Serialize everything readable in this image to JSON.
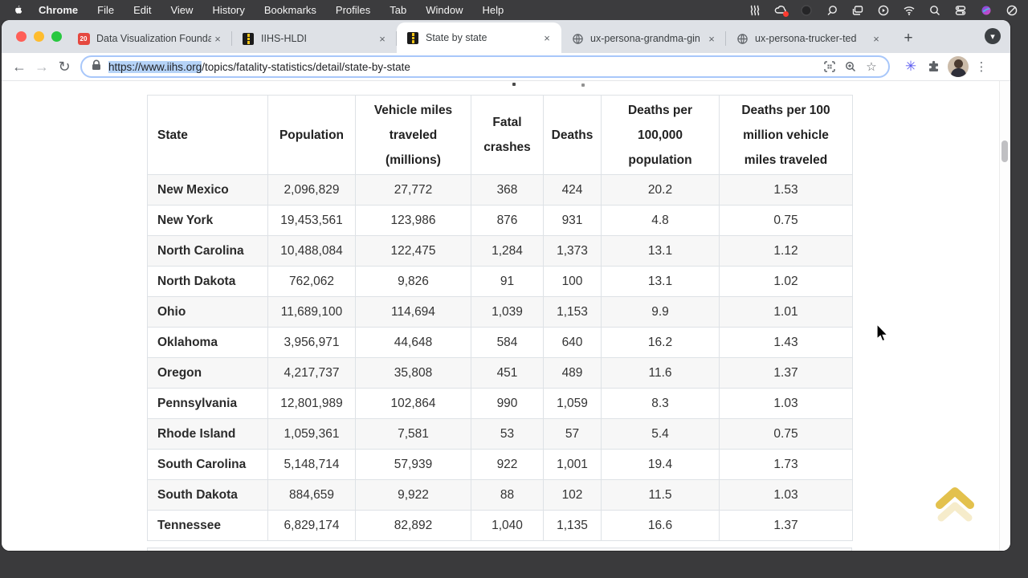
{
  "menubar": {
    "app_name": "Chrome",
    "menus": [
      "File",
      "Edit",
      "View",
      "History",
      "Bookmarks",
      "Profiles",
      "Tab",
      "Window",
      "Help"
    ]
  },
  "browser": {
    "tabs": [
      {
        "title": "Data Visualization Founda",
        "favicon": "calendar",
        "favicon_badge": "20"
      },
      {
        "title": "IIHS-HLDI",
        "favicon": "road"
      },
      {
        "title": "State by state",
        "favicon": "road",
        "active": true
      },
      {
        "title": "ux-persona-grandma-gin",
        "favicon": "globe"
      },
      {
        "title": "ux-persona-trucker-ted",
        "favicon": "globe"
      }
    ],
    "url": {
      "selected_part": "https://www.iihs.org",
      "rest_part": "/topics/fatality-statistics/detail/state-by-state"
    }
  },
  "icons": {
    "close": "×",
    "plus": "+",
    "back": "←",
    "forward": "→",
    "reload": "↻",
    "star": "☆",
    "kebab": "⋮",
    "asterisk": "✳",
    "chevron_down": "▾"
  },
  "table": {
    "headers": [
      "State",
      "Population",
      "Vehicle miles traveled (millions)",
      "Fatal crashes",
      "Deaths",
      "Deaths per 100,000 population",
      "Deaths per 100 million vehicle miles traveled"
    ],
    "rows": [
      [
        "New Mexico",
        "2,096,829",
        "27,772",
        "368",
        "424",
        "20.2",
        "1.53"
      ],
      [
        "New York",
        "19,453,561",
        "123,986",
        "876",
        "931",
        "4.8",
        "0.75"
      ],
      [
        "North Carolina",
        "10,488,084",
        "122,475",
        "1,284",
        "1,373",
        "13.1",
        "1.12"
      ],
      [
        "North Dakota",
        "762,062",
        "9,826",
        "91",
        "100",
        "13.1",
        "1.02"
      ],
      [
        "Ohio",
        "11,689,100",
        "114,694",
        "1,039",
        "1,153",
        "9.9",
        "1.01"
      ],
      [
        "Oklahoma",
        "3,956,971",
        "44,648",
        "584",
        "640",
        "16.2",
        "1.43"
      ],
      [
        "Oregon",
        "4,217,737",
        "35,808",
        "451",
        "489",
        "11.6",
        "1.37"
      ],
      [
        "Pennsylvania",
        "12,801,989",
        "102,864",
        "990",
        "1,059",
        "8.3",
        "1.03"
      ],
      [
        "Rhode Island",
        "1,059,361",
        "7,581",
        "53",
        "57",
        "5.4",
        "0.75"
      ],
      [
        "South Carolina",
        "5,148,714",
        "57,939",
        "922",
        "1,001",
        "19.4",
        "1.73"
      ],
      [
        "South Dakota",
        "884,659",
        "9,922",
        "88",
        "102",
        "11.5",
        "1.03"
      ],
      [
        "Tennessee",
        "6,829,174",
        "82,892",
        "1,040",
        "1,135",
        "16.6",
        "1.37"
      ]
    ]
  },
  "colors": {
    "selection_highlight": "#b5d3f8",
    "scroll_top_gold": "#e3c14d",
    "tabstrip_bg": "#dee1e6",
    "desktop_bg": "#3a3a3c",
    "alt_row_bg": "#f7f7f7"
  }
}
